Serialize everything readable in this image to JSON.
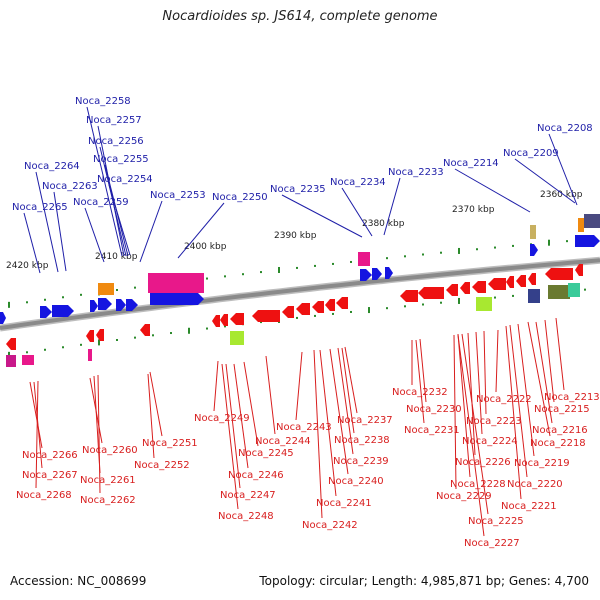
{
  "title": "Nocardioides sp. JS614, complete genome",
  "accession": "Accession: NC_008699",
  "topology": "Topology: circular; Length: 4,985,871 bp; Genes: 4,700",
  "colors": {
    "upper_labels": "#1f1fa8",
    "lower_labels": "#d81e1e",
    "forward_gene": "#1515e0",
    "reverse_gene": "#ee1111",
    "backbone": "#8a8a8a",
    "tick": "#2b8a2b"
  },
  "kbp_labels": [
    "2420 kbp",
    "2410 kbp",
    "2400 kbp",
    "2390 kbp",
    "2380 kbp",
    "2370 kbp",
    "2360 kbp"
  ],
  "upper_genes": [
    "Noca_2258",
    "Noca_2257",
    "Noca_2256",
    "Noca_2255",
    "Noca_2264",
    "Noca_2254",
    "Noca_2263",
    "Noca_2253",
    "Noca_2250",
    "Noca_2265",
    "Noca_2259",
    "Noca_2235",
    "Noca_2234",
    "Noca_2233",
    "Noca_2214",
    "Noca_2209",
    "Noca_2208"
  ],
  "lower_genes": [
    "Noca_2232",
    "Noca_2213",
    "Noca_2230",
    "Noca_2222",
    "Noca_2215",
    "Noca_2249",
    "Noca_2237",
    "Noca_2223",
    "Noca_2243",
    "Noca_2231",
    "Noca_2216",
    "Noca_2244",
    "Noca_2238",
    "Noca_2224",
    "Noca_2218",
    "Noca_2251",
    "Noca_2245",
    "Noca_2266",
    "Noca_2260",
    "Noca_2252",
    "Noca_2239",
    "Noca_2226",
    "Noca_2219",
    "Noca_2246",
    "Noca_2267",
    "Noca_2261",
    "Noca_2240",
    "Noca_2228",
    "Noca_2220",
    "Noca_2247",
    "Noca_2268",
    "Noca_2229",
    "Noca_2262",
    "Noca_2241",
    "Noca_2221",
    "Noca_2248",
    "Noca_2225",
    "Noca_2242",
    "Noca_2227"
  ]
}
